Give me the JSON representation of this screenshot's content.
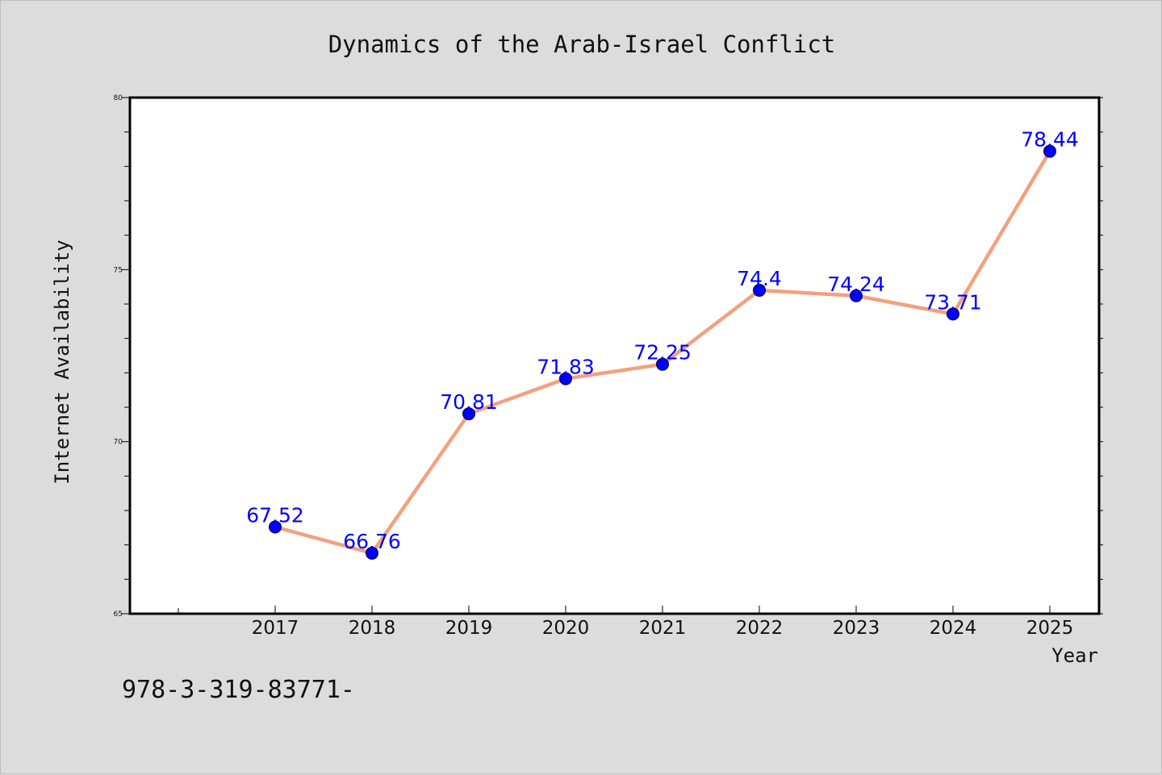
{
  "chart_data": {
    "type": "line",
    "title": "Dynamics of the Arab-Israel Conflict",
    "xlabel": "Year",
    "ylabel": "Internet Availability",
    "x": [
      "2017",
      "2018",
      "2019",
      "2020",
      "2021",
      "2022",
      "2023",
      "2024",
      "2025"
    ],
    "series": [
      {
        "values": [
          67.52,
          66.76,
          70.81,
          71.83,
          72.25,
          74.4,
          74.24,
          73.71,
          78.44
        ],
        "labels": [
          "67.52",
          "66.76",
          "70.81",
          "71.83",
          "72.25",
          "74.4",
          "74.24",
          "73.71",
          "78.44"
        ],
        "line_color": "#f4a07e",
        "marker_color": "#0000ff"
      }
    ],
    "ylim": [
      65,
      80
    ],
    "yticks": [
      "65",
      "70",
      "75",
      "80"
    ],
    "grid": false,
    "legend": "none",
    "background": "#dcdcdc",
    "plot_background": "#ffffff",
    "label_color": "#0000ff"
  },
  "footer": {
    "text": "978-3-319-83771-"
  }
}
